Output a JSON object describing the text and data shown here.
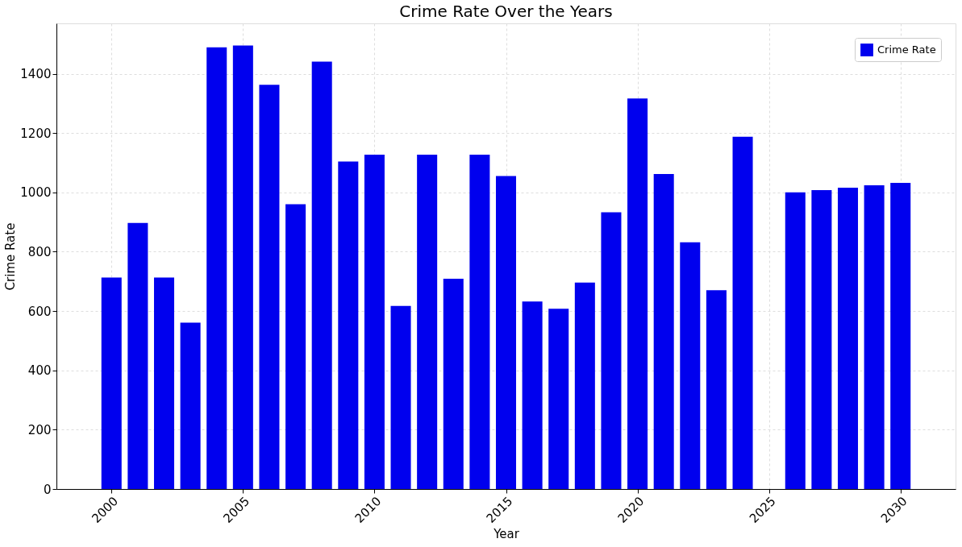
{
  "chart_data": {
    "type": "bar",
    "title": "Crime Rate Over the Years",
    "xlabel": "Year",
    "ylabel": "Crime Rate",
    "x": [
      2000,
      2001,
      2002,
      2003,
      2004,
      2005,
      2006,
      2007,
      2008,
      2009,
      2010,
      2011,
      2012,
      2013,
      2014,
      2015,
      2016,
      2017,
      2018,
      2019,
      2020,
      2021,
      2022,
      2023,
      2024,
      2026,
      2027,
      2028,
      2029,
      2030
    ],
    "series": [
      {
        "name": "Crime Rate",
        "color": "#0000ee",
        "values": [
          713,
          897,
          713,
          561,
          1489,
          1495,
          1363,
          960,
          1441,
          1104,
          1127,
          617,
          1127,
          709,
          1127,
          1055,
          632,
          608,
          696,
          933,
          1317,
          1062,
          832,
          670,
          1188,
          1000,
          1008,
          1016,
          1024,
          1032
        ]
      }
    ],
    "xlim": [
      1998.06,
      2031.94
    ],
    "xticks": [
      2000,
      2005,
      2010,
      2015,
      2020,
      2025,
      2030
    ],
    "ylim": [
      0,
      1570
    ],
    "yticks": [
      0,
      200,
      400,
      600,
      800,
      1000,
      1200,
      1400
    ],
    "grid": true,
    "legend": "top right"
  }
}
